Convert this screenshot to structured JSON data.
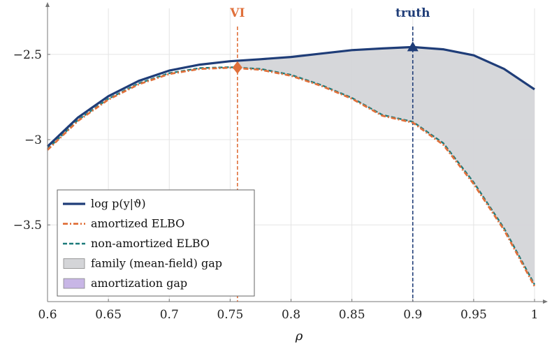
{
  "chart_data": {
    "type": "line",
    "title": "",
    "xlabel": "ρ",
    "ylabel": "",
    "xlim": [
      0.6,
      1.0
    ],
    "ylim": [
      -3.95,
      -2.23
    ],
    "grid": true,
    "legend_placement": "bottom-left",
    "x_ticks": [
      0.6,
      0.65,
      0.7,
      0.75,
      0.8,
      0.85,
      0.9,
      0.95,
      1.0
    ],
    "x_tick_labels": [
      "0.6",
      "0.65",
      "0.7",
      "0.75",
      "0.8",
      "0.85",
      "0.9",
      "0.95",
      "1"
    ],
    "y_ticks": [
      -2.5,
      -3.0,
      -3.5
    ],
    "y_tick_labels": [
      "−2.5",
      "−3",
      "−3.5"
    ],
    "x": [
      0.6,
      0.625,
      0.65,
      0.675,
      0.7,
      0.725,
      0.75,
      0.775,
      0.8,
      0.825,
      0.85,
      0.875,
      0.9,
      0.925,
      0.95,
      0.975,
      1.0
    ],
    "series": [
      {
        "name": "log p(y|ϑ)",
        "color": "#1f3d78",
        "style": "solid",
        "values": [
          -3.04,
          -2.87,
          -2.745,
          -2.655,
          -2.595,
          -2.56,
          -2.54,
          -2.528,
          -2.515,
          -2.495,
          -2.475,
          -2.465,
          -2.457,
          -2.47,
          -2.505,
          -2.585,
          -2.705
        ]
      },
      {
        "name": "amortized ELBO",
        "color": "#e0703b",
        "style": "dashdot",
        "values": [
          -3.06,
          -2.89,
          -2.765,
          -2.675,
          -2.615,
          -2.585,
          -2.578,
          -2.59,
          -2.625,
          -2.685,
          -2.76,
          -2.86,
          -2.9,
          -3.03,
          -3.26,
          -3.53,
          -3.86
        ]
      },
      {
        "name": "non-amortized ELBO",
        "color": "#1b7a7a",
        "style": "dashed",
        "values": [
          -3.055,
          -2.885,
          -2.76,
          -2.67,
          -2.61,
          -2.58,
          -2.575,
          -2.585,
          -2.62,
          -2.68,
          -2.755,
          -2.855,
          -2.895,
          -3.02,
          -3.25,
          -3.52,
          -3.85
        ]
      }
    ],
    "shaded_regions": [
      {
        "name": "family (mean-field) gap",
        "color": "#d4d5d8"
      },
      {
        "name": "amortization gap",
        "color": "#c8b6e6"
      }
    ],
    "annotations": [
      {
        "text": "VI",
        "x": 0.756,
        "marker": "diamond",
        "marker_y": -2.577,
        "color": "#e0703b",
        "line_style": "dashed"
      },
      {
        "text": "truth",
        "x": 0.9,
        "marker": "triangle",
        "marker_y": -2.457,
        "color": "#1f3d78",
        "line_style": "dashed"
      }
    ]
  }
}
